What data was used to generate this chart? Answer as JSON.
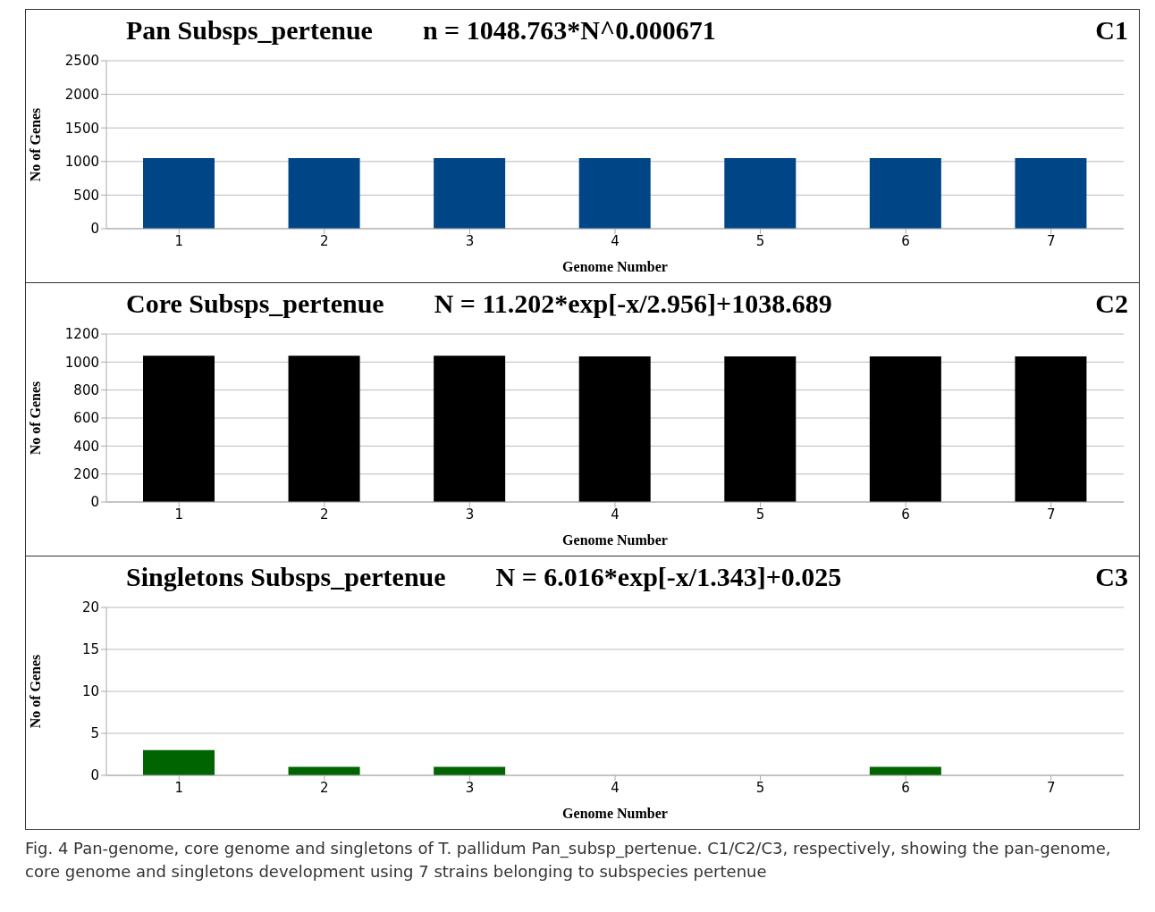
{
  "chart_data": [
    {
      "type": "bar",
      "title": "Pan Subsps_pertenue",
      "annotations": [
        "n = 1048.763*N^0.000671",
        "C1"
      ],
      "xlabel": "Genome  Number",
      "ylabel": "No of Genes",
      "categories": [
        "1",
        "2",
        "3",
        "4",
        "5",
        "6",
        "7"
      ],
      "values": [
        1050,
        1050,
        1050,
        1050,
        1050,
        1050,
        1050
      ],
      "color": "#004586",
      "ylim": [
        0,
        2500
      ],
      "yticks": [
        0,
        500,
        1000,
        1500,
        2000,
        2500
      ],
      "grid": "y"
    },
    {
      "type": "bar",
      "title": "Core Subsps_pertenue",
      "annotations": [
        "N = 11.202*exp[-x/2.956]+1038.689",
        "C2"
      ],
      "xlabel": "Genome  Number",
      "ylabel": "No of Genes",
      "categories": [
        "1",
        "2",
        "3",
        "4",
        "5",
        "6",
        "7"
      ],
      "values": [
        1045,
        1045,
        1045,
        1040,
        1040,
        1040,
        1040
      ],
      "color": "#000000",
      "ylim": [
        0,
        1200
      ],
      "yticks": [
        0,
        200,
        400,
        600,
        800,
        1000,
        1200
      ],
      "grid": "y"
    },
    {
      "type": "bar",
      "title": "Singletons Subsps_pertenue",
      "annotations": [
        "N = 6.016*exp[-x/1.343]+0.025",
        "C3",
        "Fig. 4 Pan-genome, core genome and singletons of T. pallidum Pan_subsp_pertenue. C1/C2/C3, respectively, showing the pan-genome, core genome and singletons development using 7 strains belonging to subspecies pertenue"
      ],
      "xlabel": "Genome  Number",
      "ylabel": "No of Genes",
      "categories": [
        "1",
        "2",
        "3",
        "4",
        "5",
        "6",
        "7"
      ],
      "values": [
        3,
        1,
        1,
        0,
        0,
        1,
        0
      ],
      "color": "#006400",
      "ylim": [
        0,
        20
      ],
      "yticks": [
        0,
        5,
        10,
        15,
        20
      ],
      "grid": "y"
    }
  ]
}
